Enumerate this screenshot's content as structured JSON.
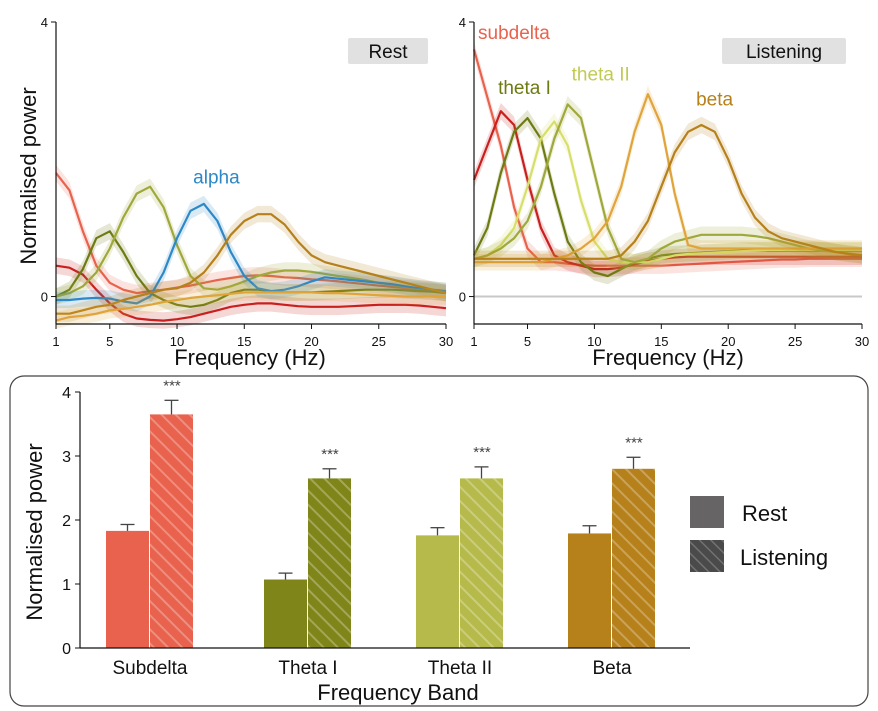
{
  "chart_data": [
    {
      "type": "line",
      "id": "rest",
      "badge": "Rest",
      "xlabel": "Frequency (Hz)",
      "ylabel": "Normalised power",
      "xlim": [
        1,
        30
      ],
      "ylim": [
        -0.4,
        4
      ],
      "xticks": [
        1,
        5,
        10,
        15,
        20,
        25,
        30
      ],
      "yticks": [
        0,
        4
      ],
      "x": [
        1,
        2,
        3,
        4,
        5,
        6,
        7,
        8,
        9,
        10,
        11,
        12,
        13,
        14,
        15,
        16,
        17,
        18,
        19,
        20,
        21,
        22,
        23,
        24,
        25,
        26,
        27,
        28,
        29,
        30
      ],
      "series": [
        {
          "color": "#e8624d",
          "values": [
            1.8,
            1.55,
            0.95,
            0.45,
            0.2,
            0.1,
            0.05,
            0.08,
            0.1,
            0.13,
            0.16,
            0.2,
            0.24,
            0.27,
            0.3,
            0.31,
            0.3,
            0.28,
            0.27,
            0.25,
            0.24,
            0.22,
            0.2,
            0.18,
            0.16,
            0.14,
            0.12,
            0.1,
            0.08,
            0.06
          ]
        },
        {
          "color": "#c8201e",
          "values": [
            0.45,
            0.42,
            0.32,
            0.1,
            -0.1,
            -0.25,
            -0.32,
            -0.34,
            -0.35,
            -0.33,
            -0.3,
            -0.25,
            -0.2,
            -0.15,
            -0.12,
            -0.1,
            -0.1,
            -0.12,
            -0.14,
            -0.15,
            -0.15,
            -0.15,
            -0.14,
            -0.13,
            -0.12,
            -0.12,
            -0.12,
            -0.13,
            -0.15,
            -0.17
          ]
        },
        {
          "color": "#6e7a12",
          "values": [
            0.0,
            0.1,
            0.4,
            0.85,
            0.95,
            0.65,
            0.3,
            0.05,
            -0.05,
            -0.12,
            -0.15,
            -0.12,
            -0.05,
            0.05,
            0.1,
            0.1,
            0.08,
            0.06,
            0.06,
            0.06,
            0.07,
            0.08,
            0.09,
            0.1,
            0.1,
            0.1,
            0.09,
            0.08,
            0.07,
            0.05
          ]
        },
        {
          "color": "#9fa83a",
          "values": [
            0.0,
            0.05,
            0.15,
            0.35,
            0.7,
            1.15,
            1.5,
            1.6,
            1.3,
            0.75,
            0.3,
            0.12,
            0.1,
            0.15,
            0.22,
            0.3,
            0.35,
            0.38,
            0.38,
            0.36,
            0.33,
            0.3,
            0.27,
            0.24,
            0.2,
            0.17,
            0.14,
            0.12,
            0.1,
            0.08
          ]
        },
        {
          "color": "#2d88c6",
          "values": [
            -0.05,
            -0.05,
            -0.03,
            -0.02,
            -0.03,
            -0.07,
            -0.1,
            0.0,
            0.35,
            0.85,
            1.25,
            1.35,
            1.1,
            0.65,
            0.3,
            0.12,
            0.08,
            0.1,
            0.15,
            0.22,
            0.28,
            0.26,
            0.24,
            0.22,
            0.2,
            0.18,
            0.15,
            0.12,
            0.1,
            0.08
          ]
        },
        {
          "color": "#b6801a",
          "values": [
            -0.25,
            -0.25,
            -0.2,
            -0.15,
            -0.12,
            -0.05,
            0.0,
            0.05,
            0.1,
            0.12,
            0.2,
            0.35,
            0.6,
            0.9,
            1.1,
            1.2,
            1.2,
            1.05,
            0.8,
            0.6,
            0.5,
            0.45,
            0.4,
            0.35,
            0.3,
            0.25,
            0.2,
            0.15,
            0.1,
            0.05
          ]
        },
        {
          "color": "#e0a43a",
          "values": [
            -0.35,
            -0.3,
            -0.28,
            -0.25,
            -0.2,
            -0.18,
            -0.15,
            -0.12,
            -0.08,
            -0.05,
            -0.02,
            0.0,
            0.02,
            0.04,
            0.06,
            0.06,
            0.06,
            0.06,
            0.06,
            0.06,
            0.05,
            0.05,
            0.04,
            0.03,
            0.02,
            0.01,
            0.0,
            0.0,
            0.0,
            0.0
          ]
        }
      ],
      "annotations": [
        {
          "text": "alpha",
          "color": "#2d88c6",
          "x": 11.2,
          "y": 1.65
        }
      ]
    },
    {
      "type": "line",
      "id": "listening",
      "badge": "Listening",
      "xlabel": "Frequency (Hz)",
      "ylabel": "",
      "xlim": [
        1,
        30
      ],
      "ylim": [
        -0.4,
        4
      ],
      "xticks": [
        1,
        5,
        10,
        15,
        20,
        25,
        30
      ],
      "yticks": [
        0,
        4
      ],
      "zero_line": true,
      "x": [
        1,
        2,
        3,
        4,
        5,
        6,
        7,
        8,
        9,
        10,
        11,
        12,
        13,
        14,
        15,
        16,
        17,
        18,
        19,
        20,
        21,
        22,
        23,
        24,
        25,
        26,
        27,
        28,
        29,
        30
      ],
      "series": [
        {
          "color": "#e8624d",
          "values": [
            3.6,
            2.9,
            2.2,
            1.3,
            0.7,
            0.5,
            0.5,
            0.48,
            0.46,
            0.45,
            0.45,
            0.45,
            0.45,
            0.45,
            0.45,
            0.46,
            0.47,
            0.48,
            0.49,
            0.5,
            0.51,
            0.52,
            0.53,
            0.54,
            0.54,
            0.55,
            0.55,
            0.55,
            0.55,
            0.55
          ]
        },
        {
          "color": "#c8201e",
          "values": [
            1.7,
            2.2,
            2.7,
            2.5,
            1.7,
            1.0,
            0.6,
            0.5,
            0.45,
            0.4,
            0.4,
            0.42,
            0.47,
            0.52,
            0.55,
            0.57,
            0.58,
            0.58,
            0.58,
            0.58,
            0.58,
            0.58,
            0.58,
            0.58,
            0.58,
            0.58,
            0.58,
            0.58,
            0.58,
            0.58
          ]
        },
        {
          "color": "#6e7a12",
          "values": [
            0.6,
            1.0,
            1.8,
            2.4,
            2.6,
            2.3,
            1.5,
            0.8,
            0.5,
            0.35,
            0.3,
            0.4,
            0.5,
            0.55,
            0.6,
            0.62,
            0.63,
            0.64,
            0.65,
            0.66,
            0.67,
            0.67,
            0.67,
            0.67,
            0.67,
            0.67,
            0.67,
            0.67,
            0.67,
            0.67
          ]
        },
        {
          "color": "#d7df6a",
          "values": [
            0.55,
            0.6,
            0.75,
            1.0,
            1.6,
            2.3,
            2.55,
            2.2,
            1.4,
            0.8,
            0.55,
            0.5,
            0.5,
            0.5,
            0.55,
            0.6,
            0.62,
            0.63,
            0.64,
            0.65,
            0.66,
            0.67,
            0.68,
            0.68,
            0.68,
            0.68,
            0.68,
            0.68,
            0.68,
            0.68
          ]
        },
        {
          "color": "#9fa83a",
          "values": [
            0.55,
            0.6,
            0.7,
            0.85,
            1.1,
            1.6,
            2.3,
            2.8,
            2.6,
            1.8,
            1.0,
            0.55,
            0.5,
            0.55,
            0.7,
            0.8,
            0.85,
            0.9,
            0.9,
            0.9,
            0.9,
            0.88,
            0.85,
            0.8,
            0.75,
            0.7,
            0.67,
            0.65,
            0.63,
            0.6
          ]
        },
        {
          "color": "#e0a43a",
          "values": [
            0.5,
            0.5,
            0.5,
            0.5,
            0.5,
            0.5,
            0.55,
            0.6,
            0.7,
            0.85,
            1.1,
            1.6,
            2.4,
            2.95,
            2.5,
            1.5,
            0.75,
            0.7,
            0.7,
            0.7,
            0.7,
            0.7,
            0.7,
            0.7,
            0.7,
            0.7,
            0.7,
            0.7,
            0.7,
            0.7
          ]
        },
        {
          "color": "#b6801a",
          "values": [
            0.55,
            0.55,
            0.55,
            0.55,
            0.55,
            0.55,
            0.55,
            0.55,
            0.55,
            0.55,
            0.55,
            0.6,
            0.8,
            1.1,
            1.6,
            2.1,
            2.4,
            2.5,
            2.4,
            2.0,
            1.5,
            1.15,
            0.95,
            0.85,
            0.8,
            0.75,
            0.7,
            0.65,
            0.62,
            0.6
          ]
        }
      ],
      "annotations": [
        {
          "text": "subdelta",
          "color": "#e8624d",
          "x": 1.3,
          "y": 3.75
        },
        {
          "text": "theta I",
          "color": "#6e7a12",
          "x": 2.8,
          "y": 2.95
        },
        {
          "text": "theta II",
          "color": "#c2ca54",
          "x": 8.3,
          "y": 3.15
        },
        {
          "text": "beta",
          "color": "#b6801a",
          "x": 17.6,
          "y": 2.78
        }
      ]
    },
    {
      "type": "bar",
      "id": "bands",
      "categories": [
        "Subdelta",
        "Theta I",
        "Theta II",
        "Beta"
      ],
      "xlabel": "Frequency Band",
      "ylabel": "Normalised power",
      "ylim": [
        0,
        4
      ],
      "yticks": [
        0,
        1,
        2,
        3,
        4
      ],
      "series": [
        {
          "name": "Rest",
          "values": [
            1.83,
            1.07,
            1.76,
            1.79
          ],
          "errors": [
            0.1,
            0.1,
            0.12,
            0.12
          ]
        },
        {
          "name": "Listening",
          "values": [
            3.65,
            2.65,
            2.65,
            2.8
          ],
          "errors": [
            0.22,
            0.15,
            0.18,
            0.18
          ]
        }
      ],
      "colors": [
        "#e8624d",
        "#7f8519",
        "#b5ba4b",
        "#b6801a"
      ],
      "significance": [
        "***",
        "***",
        "***",
        "***"
      ],
      "legend_position": "right",
      "legend_colors": [
        "#666464",
        "#4a4a4a"
      ]
    }
  ]
}
